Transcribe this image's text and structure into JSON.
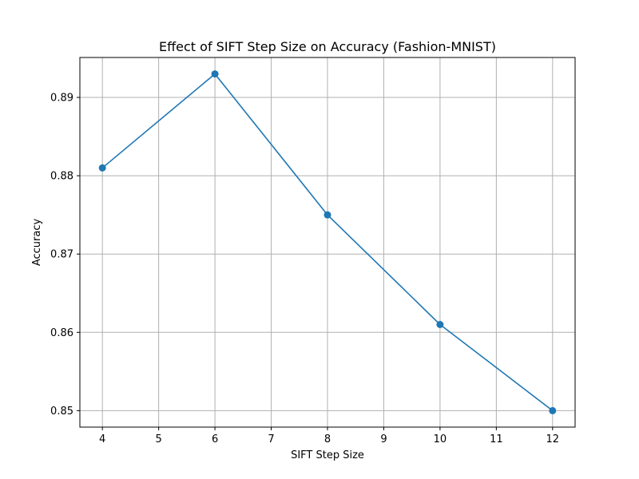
{
  "chart_data": {
    "type": "line",
    "title": "Effect of SIFT Step Size on Accuracy (Fashion-MNIST)",
    "xlabel": "SIFT Step Size",
    "ylabel": "Accuracy",
    "x": [
      4,
      6,
      8,
      10,
      12
    ],
    "series": [
      {
        "values": [
          0.881,
          0.893,
          0.875,
          0.861,
          0.85
        ],
        "color": "#1f77b4",
        "marker": "circle"
      }
    ],
    "xlim": [
      3.6,
      12.4
    ],
    "ylim": [
      0.8479,
      0.8951
    ],
    "xticks": [
      4,
      5,
      6,
      7,
      8,
      9,
      10,
      11,
      12
    ],
    "yticks": [
      0.85,
      0.86,
      0.87,
      0.88,
      0.89
    ],
    "ytick_labels": [
      "0.85",
      "0.86",
      "0.87",
      "0.88",
      "0.89"
    ],
    "grid": true,
    "grid_color": "#b0b0b0",
    "axis_color": "#000000"
  }
}
